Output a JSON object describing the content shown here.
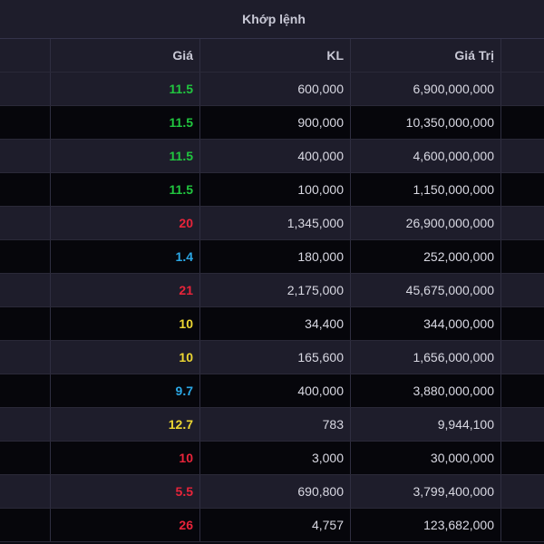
{
  "section_title": "Khớp lệnh",
  "columns": {
    "price": "Giá",
    "volume": "KL",
    "value": "Giá Trị"
  },
  "colors": {
    "green": "#21c53f",
    "red": "#e8243a",
    "yellow": "#ecd632",
    "blue": "#2ba7e5"
  },
  "rows": [
    {
      "price": "11.5",
      "volume": "600,000",
      "value": "6,900,000,000",
      "color": "#21c53f"
    },
    {
      "price": "11.5",
      "volume": "900,000",
      "value": "10,350,000,000",
      "color": "#21c53f"
    },
    {
      "price": "11.5",
      "volume": "400,000",
      "value": "4,600,000,000",
      "color": "#21c53f"
    },
    {
      "price": "11.5",
      "volume": "100,000",
      "value": "1,150,000,000",
      "color": "#21c53f"
    },
    {
      "price": "20",
      "volume": "1,345,000",
      "value": "26,900,000,000",
      "color": "#e8243a"
    },
    {
      "price": "1.4",
      "volume": "180,000",
      "value": "252,000,000",
      "color": "#2ba7e5"
    },
    {
      "price": "21",
      "volume": "2,175,000",
      "value": "45,675,000,000",
      "color": "#e8243a"
    },
    {
      "price": "10",
      "volume": "34,400",
      "value": "344,000,000",
      "color": "#ecd632"
    },
    {
      "price": "10",
      "volume": "165,600",
      "value": "1,656,000,000",
      "color": "#ecd632"
    },
    {
      "price": "9.7",
      "volume": "400,000",
      "value": "3,880,000,000",
      "color": "#2ba7e5"
    },
    {
      "price": "12.7",
      "volume": "783",
      "value": "9,944,100",
      "color": "#ecd632"
    },
    {
      "price": "10",
      "volume": "3,000",
      "value": "30,000,000",
      "color": "#e8243a"
    },
    {
      "price": "5.5",
      "volume": "690,800",
      "value": "3,799,400,000",
      "color": "#e8243a"
    },
    {
      "price": "26",
      "volume": "4,757",
      "value": "123,682,000",
      "color": "#e8243a"
    }
  ]
}
